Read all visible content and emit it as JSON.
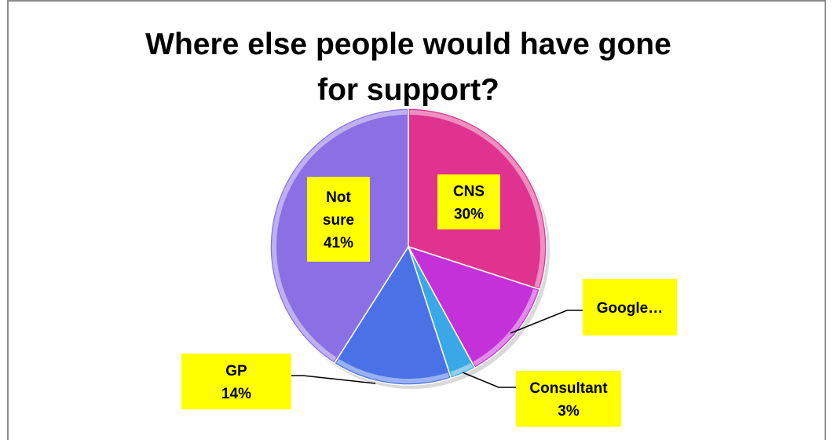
{
  "chart_data": {
    "type": "pie",
    "title": "Where else people would have gone for support?",
    "slices": [
      {
        "label": "CNS",
        "value": 30,
        "display": "30%",
        "color": "#e0338f"
      },
      {
        "label": "Google…",
        "value": 12,
        "display": "",
        "color": "#c531d8"
      },
      {
        "label": "Consultant",
        "value": 3,
        "display": "3%",
        "color": "#3aa8e6"
      },
      {
        "label": "GP",
        "value": 14,
        "display": "14%",
        "color": "#4a72e6"
      },
      {
        "label": "Not sure",
        "value": 41,
        "display": "41%",
        "color": "#8a70e4"
      }
    ],
    "label_box_color": "#ffff00"
  }
}
